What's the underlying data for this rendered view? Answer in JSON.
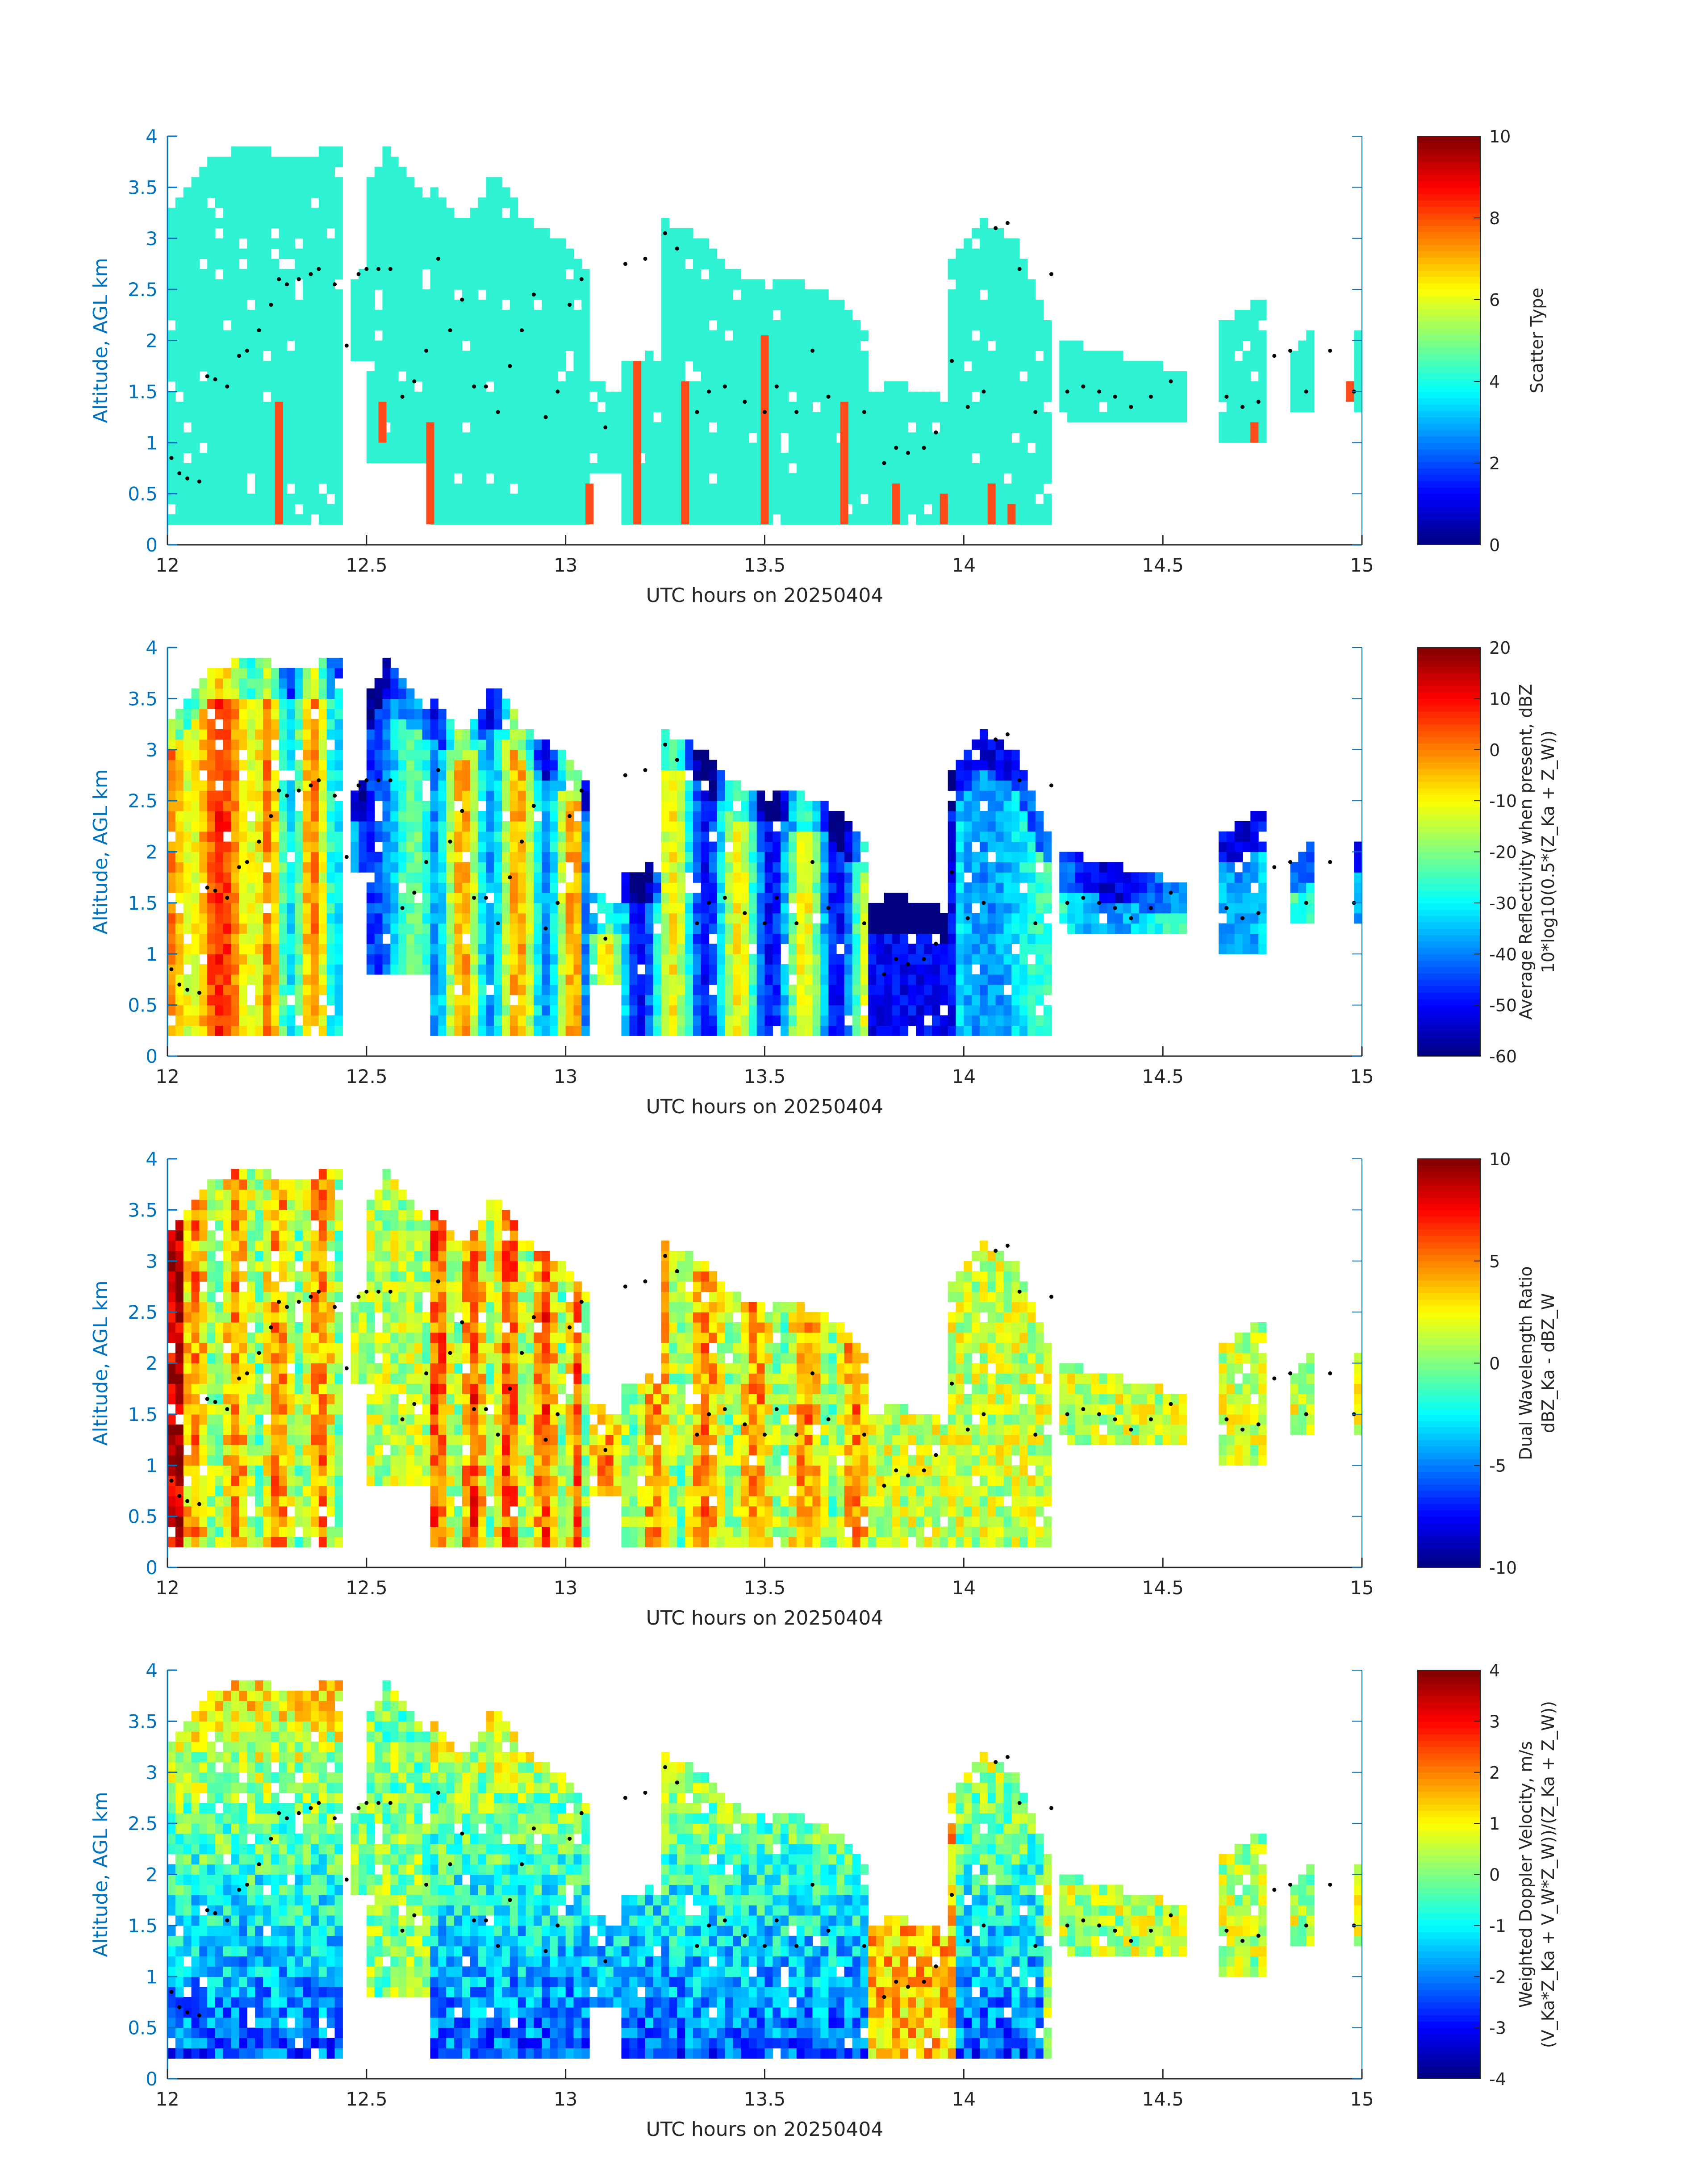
{
  "figure": {
    "xlabel": "UTC hours on 20250404",
    "ylabel": "Altitude, AGL km",
    "axis_color": "#0072BD"
  },
  "chart_data": [
    {
      "type": "heatmap",
      "panel_id": "scatter-type",
      "x_range": [
        12,
        15
      ],
      "y_range": [
        0,
        4
      ],
      "x_ticks": [
        "12",
        "12.5",
        "13",
        "13.5",
        "14",
        "14.5",
        "15"
      ],
      "y_ticks": [
        "0",
        "0.5",
        "1",
        "1.5",
        "2",
        "2.5",
        "3",
        "3.5",
        "4"
      ],
      "xlabel": "UTC hours on 20250404",
      "ylabel": "Altitude, AGL km",
      "colorbar": {
        "label_lines": [
          "Scatter Type"
        ],
        "range": [
          0,
          10
        ],
        "ticks": [
          "0",
          "2",
          "4",
          "6",
          "8",
          "10"
        ]
      },
      "field_style": "categorical",
      "categories_shown": [
        {
          "value": 4,
          "color": "#2EF2D1"
        },
        {
          "value": 8.3,
          "color": "#FF4A1A"
        }
      ]
    },
    {
      "type": "heatmap",
      "panel_id": "reflectivity",
      "x_range": [
        12,
        15
      ],
      "y_range": [
        0,
        4
      ],
      "x_ticks": [
        "12",
        "12.5",
        "13",
        "13.5",
        "14",
        "14.5",
        "15"
      ],
      "y_ticks": [
        "0",
        "0.5",
        "1",
        "1.5",
        "2",
        "2.5",
        "3",
        "3.5",
        "4"
      ],
      "xlabel": "UTC hours on 20250404",
      "ylabel": "Altitude, AGL km",
      "colorbar": {
        "label_lines": [
          "Average Reflectivity when present, dBZ",
          "10*log10(0.5*(Z_Ka + Z_W))"
        ],
        "range": [
          -60,
          20
        ],
        "ticks": [
          "-60",
          "-50",
          "-40",
          "-30",
          "-20",
          "-10",
          "0",
          "10",
          "20"
        ]
      },
      "field_style": "reflectivity"
    },
    {
      "type": "heatmap",
      "panel_id": "dwr",
      "x_range": [
        12,
        15
      ],
      "y_range": [
        0,
        4
      ],
      "x_ticks": [
        "12",
        "12.5",
        "13",
        "13.5",
        "14",
        "14.5",
        "15"
      ],
      "y_ticks": [
        "0",
        "0.5",
        "1",
        "1.5",
        "2",
        "2.5",
        "3",
        "3.5",
        "4"
      ],
      "xlabel": "UTC hours on 20250404",
      "ylabel": "Altitude, AGL km",
      "colorbar": {
        "label_lines": [
          "Dual Wavelength Ratio",
          "dBZ_Ka - dBZ_W"
        ],
        "range": [
          -10,
          10
        ],
        "ticks": [
          "-10",
          "-5",
          "0",
          "5",
          "10"
        ]
      },
      "field_style": "dwr"
    },
    {
      "type": "heatmap",
      "panel_id": "doppler",
      "x_range": [
        12,
        15
      ],
      "y_range": [
        0,
        4
      ],
      "x_ticks": [
        "12",
        "12.5",
        "13",
        "13.5",
        "14",
        "14.5",
        "15"
      ],
      "y_ticks": [
        "0",
        "0.5",
        "1",
        "1.5",
        "2",
        "2.5",
        "3",
        "3.5",
        "4"
      ],
      "xlabel": "UTC hours on 20250404",
      "ylabel": "Altitude, AGL km",
      "colorbar": {
        "label_lines": [
          "Weighted Doppler Velocity, m/s",
          "(V_Ka*Z_Ka + V_W*Z_W))/(Z_Ka + Z_W))"
        ],
        "range": [
          -4,
          4
        ],
        "ticks": [
          "-4",
          "-3",
          "-2",
          "-1",
          "0",
          "1",
          "2",
          "3",
          "4"
        ]
      },
      "field_style": "velocity"
    }
  ],
  "echo_coverage": {
    "time_segments": [
      {
        "t0": 12.0,
        "t1": 12.43,
        "top": [
          3.3,
          3.8,
          3.9,
          3.8,
          3.9
        ],
        "base": 0.2
      },
      {
        "t0": 12.46,
        "t1": 12.5,
        "top": [
          2.6,
          2.7
        ],
        "base": 1.8
      },
      {
        "t0": 12.5,
        "t1": 12.66,
        "top": [
          3.5,
          3.9,
          3.6,
          3.4
        ],
        "base": 0.8
      },
      {
        "t0": 12.66,
        "t1": 13.06,
        "top": [
          3.5,
          3.2,
          3.6,
          3.2,
          3.0,
          2.7
        ],
        "base": 0.2
      },
      {
        "t0": 13.06,
        "t1": 13.14,
        "top": [
          1.6,
          1.5
        ],
        "base": 0.7
      },
      {
        "t0": 13.14,
        "t1": 13.24,
        "top": [
          1.8,
          1.9
        ],
        "base": 0.2
      },
      {
        "t0": 13.24,
        "t1": 13.76,
        "top": [
          3.2,
          3.0,
          2.6,
          2.6,
          2.5,
          2.1
        ],
        "base": 0.2
      },
      {
        "t0": 13.76,
        "t1": 13.96,
        "top": [
          1.5,
          1.6,
          1.4
        ],
        "base": 0.2
      },
      {
        "t0": 13.96,
        "t1": 14.21,
        "top": [
          2.7,
          3.2,
          3.0,
          2.2
        ],
        "base": 0.2
      },
      {
        "t0": 14.24,
        "t1": 14.55,
        "top": [
          2.0,
          1.9,
          1.8,
          1.7
        ],
        "base": 1.2
      },
      {
        "t0": 14.64,
        "t1": 14.76,
        "top": [
          2.2,
          2.4
        ],
        "base": 1.0
      },
      {
        "t0": 14.83,
        "t1": 14.88,
        "top": [
          1.9,
          2.1
        ],
        "base": 1.3
      },
      {
        "t0": 14.97,
        "t1": 15.0,
        "top": [
          2.0,
          2.2
        ],
        "base": 1.3
      }
    ]
  },
  "marker_trace": [
    [
      12.01,
      0.85
    ],
    [
      12.03,
      0.7
    ],
    [
      12.05,
      0.65
    ],
    [
      12.08,
      0.62
    ],
    [
      12.1,
      1.65
    ],
    [
      12.12,
      1.62
    ],
    [
      12.15,
      1.55
    ],
    [
      12.18,
      1.85
    ],
    [
      12.2,
      1.9
    ],
    [
      12.23,
      2.1
    ],
    [
      12.26,
      2.35
    ],
    [
      12.28,
      2.6
    ],
    [
      12.3,
      2.55
    ],
    [
      12.33,
      2.6
    ],
    [
      12.36,
      2.65
    ],
    [
      12.38,
      2.7
    ],
    [
      12.42,
      2.55
    ],
    [
      12.45,
      1.95
    ],
    [
      12.48,
      2.65
    ],
    [
      12.5,
      2.7
    ],
    [
      12.53,
      2.7
    ],
    [
      12.56,
      2.7
    ],
    [
      12.59,
      1.45
    ],
    [
      12.62,
      1.6
    ],
    [
      12.65,
      1.9
    ],
    [
      12.68,
      2.8
    ],
    [
      12.71,
      2.1
    ],
    [
      12.74,
      2.4
    ],
    [
      12.77,
      1.55
    ],
    [
      12.8,
      1.55
    ],
    [
      12.83,
      1.3
    ],
    [
      12.86,
      1.75
    ],
    [
      12.89,
      2.1
    ],
    [
      12.92,
      2.45
    ],
    [
      12.95,
      1.25
    ],
    [
      12.98,
      1.5
    ],
    [
      13.01,
      2.35
    ],
    [
      13.04,
      2.6
    ],
    [
      13.1,
      1.15
    ],
    [
      13.15,
      2.75
    ],
    [
      13.2,
      2.8
    ],
    [
      13.25,
      3.05
    ],
    [
      13.28,
      2.9
    ],
    [
      13.33,
      1.3
    ],
    [
      13.36,
      1.5
    ],
    [
      13.4,
      1.55
    ],
    [
      13.45,
      1.4
    ],
    [
      13.5,
      1.3
    ],
    [
      13.53,
      1.55
    ],
    [
      13.58,
      1.3
    ],
    [
      13.62,
      1.9
    ],
    [
      13.66,
      1.45
    ],
    [
      13.75,
      1.3
    ],
    [
      13.8,
      0.8
    ],
    [
      13.83,
      0.95
    ],
    [
      13.86,
      0.9
    ],
    [
      13.9,
      0.95
    ],
    [
      13.93,
      1.1
    ],
    [
      13.97,
      1.8
    ],
    [
      14.01,
      1.35
    ],
    [
      14.05,
      1.5
    ],
    [
      14.08,
      3.1
    ],
    [
      14.11,
      3.15
    ],
    [
      14.14,
      2.7
    ],
    [
      14.18,
      1.3
    ],
    [
      14.22,
      2.65
    ],
    [
      14.26,
      1.5
    ],
    [
      14.3,
      1.55
    ],
    [
      14.34,
      1.5
    ],
    [
      14.38,
      1.45
    ],
    [
      14.42,
      1.35
    ],
    [
      14.47,
      1.45
    ],
    [
      14.52,
      1.6
    ],
    [
      14.66,
      1.45
    ],
    [
      14.7,
      1.35
    ],
    [
      14.74,
      1.4
    ],
    [
      14.78,
      1.85
    ],
    [
      14.82,
      1.9
    ],
    [
      14.86,
      1.5
    ],
    [
      14.92,
      1.9
    ],
    [
      14.98,
      1.5
    ]
  ],
  "outlier_bars": [
    {
      "t": 12.28,
      "top": 1.4,
      "base": 0.2
    },
    {
      "t": 12.54,
      "top": 1.4,
      "base": 1.0
    },
    {
      "t": 12.66,
      "top": 1.2,
      "base": 0.2
    },
    {
      "t": 13.06,
      "top": 0.6,
      "base": 0.2
    },
    {
      "t": 13.18,
      "top": 1.8,
      "base": 0.2
    },
    {
      "t": 13.3,
      "top": 1.6,
      "base": 0.2
    },
    {
      "t": 13.5,
      "top": 2.05,
      "base": 0.2
    },
    {
      "t": 13.7,
      "top": 1.4,
      "base": 0.2
    },
    {
      "t": 13.83,
      "top": 0.6,
      "base": 0.2
    },
    {
      "t": 13.95,
      "top": 0.5,
      "base": 0.2
    },
    {
      "t": 14.07,
      "top": 0.6,
      "base": 0.2
    },
    {
      "t": 14.12,
      "top": 0.4,
      "base": 0.2
    },
    {
      "t": 14.73,
      "top": 1.2,
      "base": 1.0
    },
    {
      "t": 14.97,
      "top": 1.6,
      "base": 1.4
    }
  ]
}
